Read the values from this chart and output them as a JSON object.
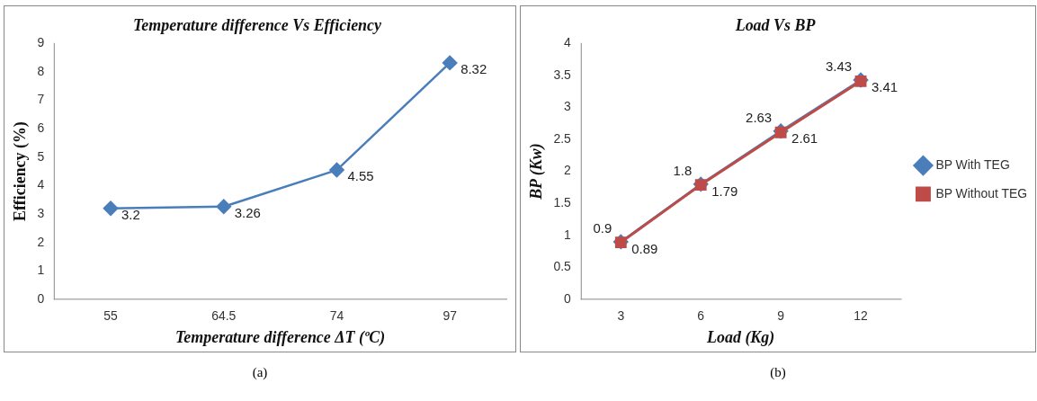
{
  "chart_data": [
    {
      "type": "line",
      "title": "Temperature difference Vs Efficiency",
      "xlabel": "Temperature difference ΔT (ºC)",
      "ylabel": "Efficiency (%)",
      "categories": [
        "55",
        "64.5",
        "74",
        "97"
      ],
      "series": [
        {
          "color": "#4a7ebb",
          "values": [
            3.2,
            3.26,
            4.55,
            8.32
          ],
          "marker": "diamond"
        }
      ],
      "ylim": [
        0,
        9
      ],
      "yticks": [
        0,
        1,
        2,
        3,
        4,
        5,
        6,
        7,
        8,
        9
      ],
      "grid": false,
      "legend": false,
      "data_labels": true,
      "annotations": [
        "(a)"
      ]
    },
    {
      "type": "line",
      "title": "Load Vs BP",
      "xlabel": "Load (Kg)",
      "ylabel": "BP (Kw)",
      "categories": [
        "3",
        "6",
        "9",
        "12"
      ],
      "series": [
        {
          "name": "BP With TEG",
          "color": "#4a7ebb",
          "values": [
            0.9,
            1.8,
            2.63,
            3.43
          ],
          "marker": "diamond"
        },
        {
          "name": "BP Without TEG",
          "color": "#be4b48",
          "values": [
            0.89,
            1.79,
            2.61,
            3.41
          ],
          "marker": "square"
        }
      ],
      "ylim": [
        0,
        4
      ],
      "yticks": [
        0,
        0.5,
        1,
        1.5,
        2,
        2.5,
        3,
        3.5,
        4
      ],
      "grid": false,
      "legend": "right",
      "data_labels": true,
      "annotations": [
        "(b)"
      ]
    }
  ]
}
